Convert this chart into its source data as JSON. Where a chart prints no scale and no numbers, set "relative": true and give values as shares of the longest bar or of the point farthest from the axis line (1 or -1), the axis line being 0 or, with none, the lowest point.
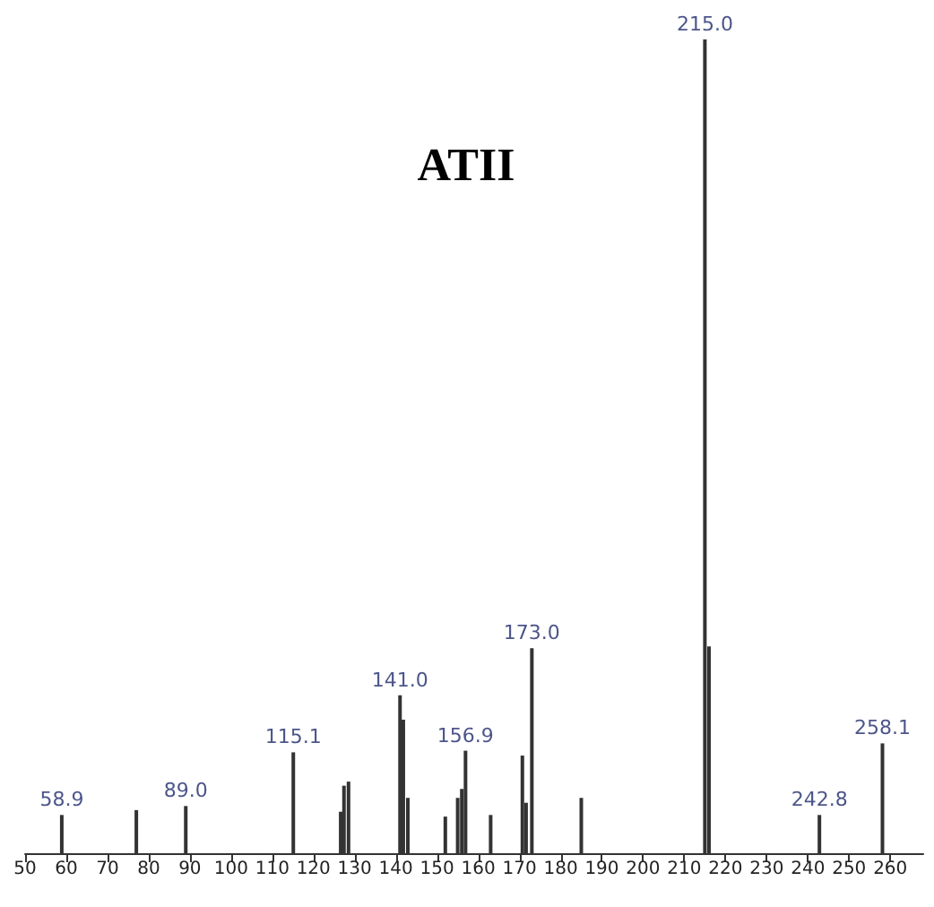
{
  "chart_data": {
    "type": "bar",
    "title": "ATII",
    "relative": true,
    "x": [
      58.9,
      77,
      89.0,
      115.1,
      126.6,
      127.4,
      128.5,
      141.0,
      141.8,
      142.9,
      152,
      155,
      156,
      156.9,
      163,
      170.7,
      171.6,
      173.0,
      185,
      215.0,
      216,
      242.8,
      258.1
    ],
    "values": [
      0.047,
      0.053,
      0.058,
      0.124,
      0.051,
      0.083,
      0.088,
      0.194,
      0.164,
      0.068,
      0.045,
      0.068,
      0.079,
      0.126,
      0.047,
      0.12,
      0.062,
      0.252,
      0.068,
      1,
      0.254,
      0.047,
      0.135
    ],
    "annotations": [
      {
        "text": "58.9",
        "x": 58.9,
        "y": 0.047
      },
      {
        "text": "89.0",
        "x": 89.0,
        "y": 0.058
      },
      {
        "text": "115.1",
        "x": 115.1,
        "y": 0.124
      },
      {
        "text": "141.0",
        "x": 141.0,
        "y": 0.194
      },
      {
        "text": "156.9",
        "x": 156.9,
        "y": 0.126
      },
      {
        "text": "173.0",
        "x": 173.0,
        "y": 0.252
      },
      {
        "text": "215.0",
        "x": 215.0,
        "y": 1
      },
      {
        "text": "242.8",
        "x": 242.8,
        "y": 0.047
      },
      {
        "text": "258.1",
        "x": 258.1,
        "y": 0.135
      }
    ],
    "color": "#333333",
    "xlim": [
      50,
      268
    ],
    "xticks": [
      50,
      60,
      70,
      80,
      90,
      100,
      110,
      120,
      130,
      140,
      150,
      160,
      170,
      180,
      190,
      200,
      210,
      220,
      230,
      240,
      250,
      260
    ],
    "grid": false
  }
}
